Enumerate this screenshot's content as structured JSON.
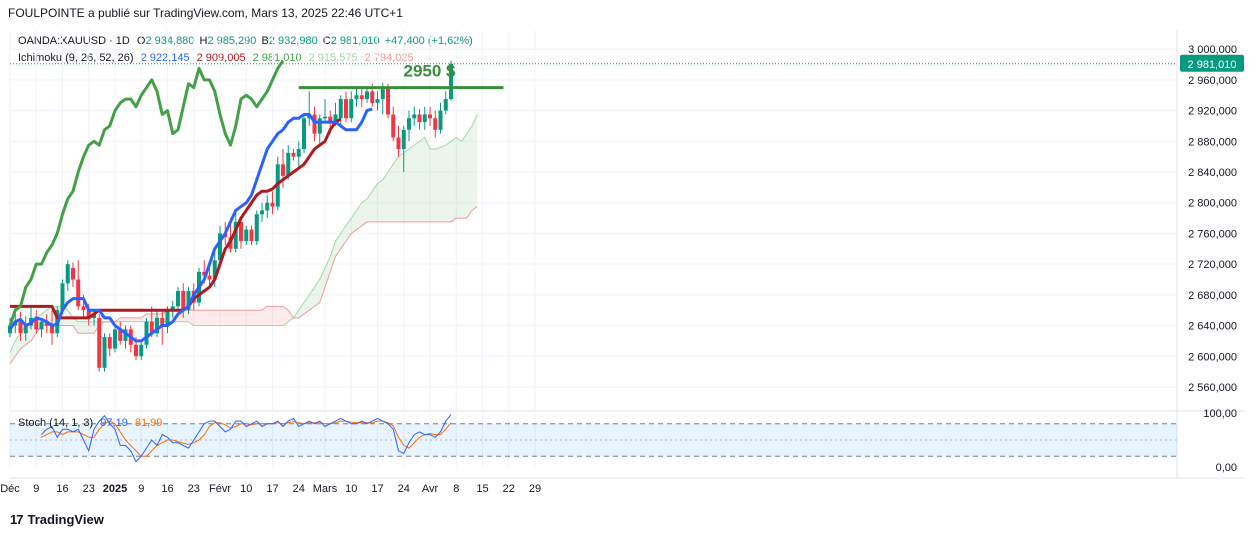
{
  "header": {
    "publisher": "FOULPOINTE a publié sur TradingView.com, Mars 13, 2025 22:46 UTC+1"
  },
  "legend": {
    "symbol": "OANDA:XAUUSD · 1D",
    "o_label": "O",
    "o_value": "2 934,880",
    "h_label": "H",
    "h_value": "2 985,290",
    "b_label": "B",
    "b_value": "2 932,980",
    "c_label": "C",
    "c_value": "2 981,010",
    "change": "+47,400 (+1,62%)",
    "ichimoku_label": "Ichimoku (9, 26, 52, 26)",
    "ichimoku_values": [
      "2 922,145",
      "2 909,005",
      "2 981,010",
      "2 915,575",
      "2 794,025"
    ]
  },
  "stoch": {
    "label": "Stoch (14, 1, 3)",
    "k_value": "97,19",
    "d_value": "81,99",
    "axis_labels": [
      "100,00",
      "0,00"
    ]
  },
  "footer": {
    "brand": "TradingView",
    "logo": "17"
  },
  "colors": {
    "up": "#089981",
    "down": "#f23645",
    "tenkan": "#2962ff",
    "kijun": "#b2191f",
    "chikou": "#43a047",
    "spanA": "#a5d6a7",
    "spanB": "#ef9a9a",
    "annotation": "#388e3c",
    "stochK": "#2962ff",
    "stochD": "#ff6d00"
  },
  "chart_data": {
    "type": "candlestick",
    "symbol": "OANDA:XAUUSD",
    "interval": "1D",
    "price_axis": {
      "ylim": [
        2530,
        3025
      ],
      "ticks": [
        "3 000,000",
        "2 960,000",
        "2 920,000",
        "2 880,000",
        "2 840,000",
        "2 800,000",
        "2 760,000",
        "2 720,000",
        "2 680,000",
        "2 640,000",
        "2 600,000",
        "2 560,000"
      ],
      "tick_values": [
        3000,
        2960,
        2920,
        2880,
        2840,
        2800,
        2760,
        2720,
        2680,
        2640,
        2600,
        2560
      ],
      "last_price": 2981.01,
      "last_price_label": "2 981,010"
    },
    "x_axis": {
      "labels": [
        {
          "text": "Déc",
          "bold": false,
          "day": 0
        },
        {
          "text": "9",
          "bold": false,
          "day": 5
        },
        {
          "text": "16",
          "bold": false,
          "day": 10
        },
        {
          "text": "23",
          "bold": false,
          "day": 15
        },
        {
          "text": "2025",
          "bold": true,
          "day": 20
        },
        {
          "text": "9",
          "bold": false,
          "day": 25
        },
        {
          "text": "16",
          "bold": false,
          "day": 30
        },
        {
          "text": "23",
          "bold": false,
          "day": 35
        },
        {
          "text": "Févr",
          "bold": false,
          "day": 40
        },
        {
          "text": "10",
          "bold": false,
          "day": 45
        },
        {
          "text": "17",
          "bold": false,
          "day": 50
        },
        {
          "text": "24",
          "bold": false,
          "day": 55
        },
        {
          "text": "Mars",
          "bold": false,
          "day": 60
        },
        {
          "text": "10",
          "bold": false,
          "day": 65
        },
        {
          "text": "17",
          "bold": false,
          "day": 70
        },
        {
          "text": "24",
          "bold": false,
          "day": 75
        },
        {
          "text": "Avr",
          "bold": false,
          "day": 80
        },
        {
          "text": "8",
          "bold": false,
          "day": 85
        },
        {
          "text": "15",
          "bold": false,
          "day": 90
        },
        {
          "text": "22",
          "bold": false,
          "day": 95
        },
        {
          "text": "29",
          "bold": false,
          "day": 100
        }
      ]
    },
    "candles": [
      {
        "o": 2630,
        "h": 2650,
        "l": 2625,
        "c": 2640
      },
      {
        "o": 2640,
        "h": 2665,
        "l": 2630,
        "c": 2645
      },
      {
        "o": 2645,
        "h": 2658,
        "l": 2620,
        "c": 2630
      },
      {
        "o": 2630,
        "h": 2652,
        "l": 2620,
        "c": 2640
      },
      {
        "o": 2640,
        "h": 2665,
        "l": 2635,
        "c": 2650
      },
      {
        "o": 2650,
        "h": 2660,
        "l": 2630,
        "c": 2635
      },
      {
        "o": 2635,
        "h": 2650,
        "l": 2625,
        "c": 2645
      },
      {
        "o": 2645,
        "h": 2655,
        "l": 2630,
        "c": 2640
      },
      {
        "o": 2640,
        "h": 2660,
        "l": 2615,
        "c": 2630
      },
      {
        "o": 2630,
        "h": 2665,
        "l": 2625,
        "c": 2660
      },
      {
        "o": 2660,
        "h": 2700,
        "l": 2655,
        "c": 2695
      },
      {
        "o": 2695,
        "h": 2725,
        "l": 2685,
        "c": 2720
      },
      {
        "o": 2715,
        "h": 2722,
        "l": 2690,
        "c": 2700
      },
      {
        "o": 2700,
        "h": 2725,
        "l": 2660,
        "c": 2665
      },
      {
        "o": 2665,
        "h": 2680,
        "l": 2650,
        "c": 2660
      },
      {
        "o": 2660,
        "h": 2668,
        "l": 2640,
        "c": 2650
      },
      {
        "o": 2650,
        "h": 2662,
        "l": 2640,
        "c": 2655
      },
      {
        "o": 2650,
        "h": 2655,
        "l": 2580,
        "c": 2585
      },
      {
        "o": 2585,
        "h": 2630,
        "l": 2580,
        "c": 2625
      },
      {
        "o": 2625,
        "h": 2630,
        "l": 2600,
        "c": 2610
      },
      {
        "o": 2610,
        "h": 2640,
        "l": 2605,
        "c": 2635
      },
      {
        "o": 2635,
        "h": 2645,
        "l": 2615,
        "c": 2620
      },
      {
        "o": 2620,
        "h": 2640,
        "l": 2610,
        "c": 2635
      },
      {
        "o": 2635,
        "h": 2640,
        "l": 2605,
        "c": 2615
      },
      {
        "o": 2615,
        "h": 2625,
        "l": 2595,
        "c": 2600
      },
      {
        "o": 2600,
        "h": 2620,
        "l": 2595,
        "c": 2615
      },
      {
        "o": 2615,
        "h": 2650,
        "l": 2610,
        "c": 2645
      },
      {
        "o": 2645,
        "h": 2665,
        "l": 2625,
        "c": 2630
      },
      {
        "o": 2630,
        "h": 2660,
        "l": 2625,
        "c": 2650
      },
      {
        "o": 2650,
        "h": 2658,
        "l": 2615,
        "c": 2640
      },
      {
        "o": 2640,
        "h": 2665,
        "l": 2630,
        "c": 2660
      },
      {
        "o": 2660,
        "h": 2672,
        "l": 2650,
        "c": 2665
      },
      {
        "o": 2665,
        "h": 2690,
        "l": 2660,
        "c": 2685
      },
      {
        "o": 2685,
        "h": 2695,
        "l": 2650,
        "c": 2660
      },
      {
        "o": 2660,
        "h": 2690,
        "l": 2655,
        "c": 2685
      },
      {
        "o": 2685,
        "h": 2695,
        "l": 2660,
        "c": 2670
      },
      {
        "o": 2670,
        "h": 2715,
        "l": 2665,
        "c": 2710
      },
      {
        "o": 2710,
        "h": 2725,
        "l": 2695,
        "c": 2705
      },
      {
        "o": 2705,
        "h": 2715,
        "l": 2690,
        "c": 2700
      },
      {
        "o": 2700,
        "h": 2735,
        "l": 2690,
        "c": 2725
      },
      {
        "o": 2725,
        "h": 2770,
        "l": 2715,
        "c": 2760
      },
      {
        "o": 2760,
        "h": 2775,
        "l": 2745,
        "c": 2755
      },
      {
        "o": 2755,
        "h": 2780,
        "l": 2735,
        "c": 2740
      },
      {
        "o": 2740,
        "h": 2790,
        "l": 2735,
        "c": 2775
      },
      {
        "o": 2775,
        "h": 2780,
        "l": 2740,
        "c": 2750
      },
      {
        "o": 2750,
        "h": 2770,
        "l": 2745,
        "c": 2765
      },
      {
        "o": 2765,
        "h": 2770,
        "l": 2745,
        "c": 2750
      },
      {
        "o": 2750,
        "h": 2790,
        "l": 2745,
        "c": 2785
      },
      {
        "o": 2785,
        "h": 2800,
        "l": 2775,
        "c": 2790
      },
      {
        "o": 2790,
        "h": 2810,
        "l": 2780,
        "c": 2800
      },
      {
        "o": 2800,
        "h": 2815,
        "l": 2785,
        "c": 2795
      },
      {
        "o": 2795,
        "h": 2860,
        "l": 2790,
        "c": 2850
      },
      {
        "o": 2850,
        "h": 2870,
        "l": 2820,
        "c": 2835
      },
      {
        "o": 2835,
        "h": 2875,
        "l": 2830,
        "c": 2865
      },
      {
        "o": 2865,
        "h": 2870,
        "l": 2855,
        "c": 2860
      },
      {
        "o": 2860,
        "h": 2880,
        "l": 2845,
        "c": 2870
      },
      {
        "o": 2870,
        "h": 2915,
        "l": 2865,
        "c": 2910
      },
      {
        "o": 2910,
        "h": 2945,
        "l": 2900,
        "c": 2915
      },
      {
        "o": 2915,
        "h": 2925,
        "l": 2880,
        "c": 2890
      },
      {
        "o": 2890,
        "h": 2915,
        "l": 2875,
        "c": 2910
      },
      {
        "o": 2910,
        "h": 2935,
        "l": 2905,
        "c": 2912
      },
      {
        "o": 2912,
        "h": 2920,
        "l": 2890,
        "c": 2905
      },
      {
        "o": 2905,
        "h": 2930,
        "l": 2900,
        "c": 2915
      },
      {
        "o": 2910,
        "h": 2940,
        "l": 2900,
        "c": 2935
      },
      {
        "o": 2935,
        "h": 2945,
        "l": 2905,
        "c": 2910
      },
      {
        "o": 2910,
        "h": 2945,
        "l": 2905,
        "c": 2935
      },
      {
        "o": 2935,
        "h": 2950,
        "l": 2925,
        "c": 2940
      },
      {
        "o": 2940,
        "h": 2948,
        "l": 2925,
        "c": 2935
      },
      {
        "o": 2935,
        "h": 2950,
        "l": 2930,
        "c": 2945
      },
      {
        "o": 2945,
        "h": 2955,
        "l": 2925,
        "c": 2930
      },
      {
        "o": 2930,
        "h": 2945,
        "l": 2920,
        "c": 2935
      },
      {
        "o": 2935,
        "h": 2956,
        "l": 2915,
        "c": 2950
      },
      {
        "o": 2950,
        "h": 2955,
        "l": 2910,
        "c": 2915
      },
      {
        "o": 2915,
        "h": 2925,
        "l": 2880,
        "c": 2885
      },
      {
        "o": 2885,
        "h": 2900,
        "l": 2860,
        "c": 2870
      },
      {
        "o": 2870,
        "h": 2900,
        "l": 2840,
        "c": 2895
      },
      {
        "o": 2895,
        "h": 2920,
        "l": 2880,
        "c": 2910
      },
      {
        "o": 2910,
        "h": 2925,
        "l": 2900,
        "c": 2915
      },
      {
        "o": 2915,
        "h": 2922,
        "l": 2895,
        "c": 2905
      },
      {
        "o": 2905,
        "h": 2925,
        "l": 2895,
        "c": 2915
      },
      {
        "o": 2915,
        "h": 2925,
        "l": 2900,
        "c": 2910
      },
      {
        "o": 2910,
        "h": 2920,
        "l": 2885,
        "c": 2895
      },
      {
        "o": 2895,
        "h": 2930,
        "l": 2890,
        "c": 2920
      },
      {
        "o": 2920,
        "h": 2945,
        "l": 2915,
        "c": 2935
      },
      {
        "o": 2935,
        "h": 2985,
        "l": 2933,
        "c": 2981
      }
    ],
    "ichimoku": {
      "tenkan": [
        2635,
        2645,
        2648,
        2640,
        2643,
        2650,
        2648,
        2645,
        2640,
        2642,
        2660,
        2670,
        2675,
        2675,
        2675,
        2660,
        2660,
        2660,
        2650,
        2650,
        2640,
        2635,
        2630,
        2625,
        2620,
        2620,
        2625,
        2630,
        2635,
        2640,
        2640,
        2645,
        2655,
        2660,
        2665,
        2680,
        2690,
        2700,
        2720,
        2740,
        2750,
        2760,
        2775,
        2790,
        2795,
        2800,
        2810,
        2830,
        2850,
        2870,
        2880,
        2890,
        2895,
        2905,
        2910,
        2910,
        2915,
        2915,
        2905,
        2905,
        2905,
        2905,
        2905,
        2900,
        2895,
        2895,
        2895,
        2905,
        2920,
        2922
      ],
      "kijun": [
        2665,
        2665,
        2665,
        2665,
        2665,
        2665,
        2665,
        2665,
        2665,
        2650,
        2650,
        2650,
        2650,
        2650,
        2650,
        2650,
        2655,
        2660,
        2660,
        2660,
        2660,
        2660,
        2660,
        2660,
        2660,
        2660,
        2660,
        2660,
        2660,
        2660,
        2660,
        2660,
        2660,
        2660,
        2665,
        2675,
        2680,
        2685,
        2690,
        2700,
        2720,
        2740,
        2750,
        2765,
        2780,
        2790,
        2800,
        2810,
        2815,
        2815,
        2818,
        2825,
        2830,
        2835,
        2840,
        2845,
        2850,
        2860,
        2870,
        2875,
        2880,
        2895,
        2905,
        2909
      ],
      "chikou": [
        2640,
        2660,
        2665,
        2690,
        2700,
        2720,
        2720,
        2735,
        2745,
        2760,
        2785,
        2805,
        2815,
        2840,
        2860,
        2875,
        2880,
        2875,
        2895,
        2900,
        2920,
        2930,
        2935,
        2935,
        2925,
        2940,
        2950,
        2960,
        2945,
        2915,
        2920,
        2890,
        2895,
        2925,
        2955,
        2950,
        2975,
        2960,
        2960,
        2945,
        2915,
        2890,
        2875,
        2900,
        2935,
        2940,
        2935,
        2925,
        2935,
        2945,
        2960,
        2975,
        2985
      ],
      "senkou_a": [
        2605,
        2620,
        2630,
        2640,
        2645,
        2650,
        2655,
        2660,
        2665,
        2665,
        2665,
        2660,
        2650,
        2645,
        2645,
        2645,
        2645,
        2645,
        2645,
        2645,
        2645,
        2645,
        2645,
        2645,
        2645,
        2645,
        2645,
        2645,
        2645,
        2645,
        2645,
        2645,
        2645,
        2645,
        2645,
        2640,
        2640,
        2640,
        2640,
        2640,
        2640,
        2640,
        2640,
        2640,
        2640,
        2640,
        2640,
        2640,
        2640,
        2640,
        2640,
        2640,
        2640,
        2645,
        2650,
        2660,
        2670,
        2680,
        2690,
        2700,
        2715,
        2730,
        2750,
        2760,
        2770,
        2780,
        2790,
        2800,
        2805,
        2815,
        2825,
        2830,
        2840,
        2850,
        2860,
        2865,
        2870,
        2875,
        2880,
        2885,
        2870,
        2870,
        2872,
        2875,
        2880,
        2885,
        2880,
        2890,
        2900,
        2915
      ],
      "senkou_b": [
        2590,
        2600,
        2610,
        2615,
        2620,
        2630,
        2640,
        2640,
        2640,
        2640,
        2640,
        2640,
        2640,
        2630,
        2630,
        2630,
        2630,
        2640,
        2645,
        2645,
        2645,
        2650,
        2650,
        2650,
        2650,
        2650,
        2655,
        2655,
        2655,
        2655,
        2660,
        2660,
        2660,
        2660,
        2660,
        2660,
        2660,
        2660,
        2660,
        2660,
        2660,
        2660,
        2660,
        2660,
        2660,
        2660,
        2660,
        2660,
        2660,
        2665,
        2665,
        2665,
        2665,
        2660,
        2650,
        2650,
        2655,
        2660,
        2665,
        2670,
        2690,
        2710,
        2730,
        2740,
        2750,
        2760,
        2765,
        2770,
        2775,
        2775,
        2775,
        2775,
        2775,
        2775,
        2775,
        2775,
        2775,
        2775,
        2775,
        2775,
        2775,
        2775,
        2775,
        2775,
        2775,
        2780,
        2780,
        2780,
        2790,
        2795
      ]
    },
    "resistance_line": {
      "value": 2950,
      "from_index": 55,
      "to_index": 94,
      "label": "2950 $"
    },
    "stochastic": {
      "ylim": [
        0,
        100
      ],
      "upper_band": 80,
      "lower_band": 20,
      "k": [
        60,
        70,
        75,
        55,
        70,
        70,
        65,
        70,
        50,
        30,
        70,
        85,
        95,
        80,
        70,
        40,
        40,
        30,
        10,
        20,
        35,
        50,
        40,
        60,
        55,
        45,
        45,
        40,
        35,
        50,
        65,
        80,
        85,
        85,
        75,
        65,
        70,
        85,
        85,
        75,
        80,
        85,
        75,
        80,
        80,
        85,
        75,
        85,
        90,
        75,
        80,
        85,
        80,
        85,
        75,
        80,
        85,
        90,
        85,
        80,
        80,
        85,
        80,
        85,
        90,
        85,
        80,
        70,
        30,
        25,
        45,
        60,
        65,
        60,
        60,
        55,
        65,
        85,
        97
      ],
      "d": [
        55,
        60,
        65,
        65,
        60,
        65,
        65,
        65,
        60,
        55,
        55,
        70,
        80,
        85,
        80,
        65,
        50,
        40,
        30,
        20,
        20,
        30,
        40,
        45,
        50,
        50,
        47,
        44,
        42,
        45,
        50,
        60,
        75,
        82,
        82,
        78,
        72,
        75,
        80,
        80,
        78,
        80,
        80,
        80,
        80,
        82,
        80,
        82,
        84,
        82,
        80,
        82,
        82,
        83,
        80,
        80,
        82,
        85,
        85,
        83,
        82,
        82,
        82,
        82,
        85,
        85,
        82,
        76,
        55,
        40,
        35,
        45,
        55,
        60,
        62,
        60,
        60,
        70,
        82
      ]
    }
  }
}
